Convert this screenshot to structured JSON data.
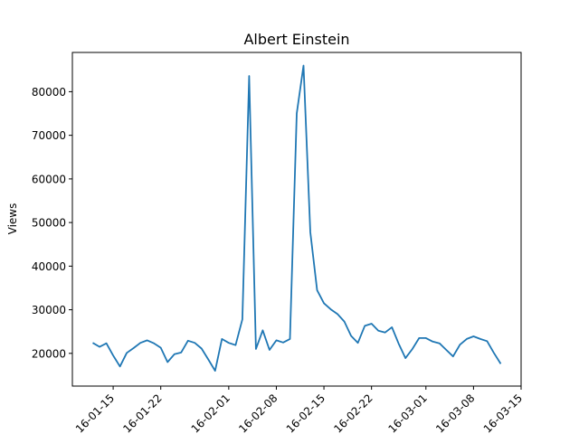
{
  "chart_data": {
    "type": "line",
    "title": "Albert Einstein",
    "xlabel": "",
    "ylabel": "Views",
    "grid": false,
    "line_color": "#1f77b4",
    "x_start": "2016-01-12",
    "x": [
      "2016-01-12",
      "2016-01-13",
      "2016-01-14",
      "2016-01-15",
      "2016-01-16",
      "2016-01-17",
      "2016-01-18",
      "2016-01-19",
      "2016-01-20",
      "2016-01-21",
      "2016-01-22",
      "2016-01-23",
      "2016-01-24",
      "2016-01-25",
      "2016-01-26",
      "2016-01-27",
      "2016-01-28",
      "2016-01-29",
      "2016-01-30",
      "2016-01-31",
      "2016-02-01",
      "2016-02-02",
      "2016-02-03",
      "2016-02-04",
      "2016-02-05",
      "2016-02-06",
      "2016-02-07",
      "2016-02-08",
      "2016-02-09",
      "2016-02-10",
      "2016-02-11",
      "2016-02-12",
      "2016-02-13",
      "2016-02-14",
      "2016-02-15",
      "2016-02-16",
      "2016-02-17",
      "2016-02-18",
      "2016-02-19",
      "2016-02-20",
      "2016-02-21",
      "2016-02-22",
      "2016-02-23",
      "2016-02-24",
      "2016-02-25",
      "2016-02-26",
      "2016-02-27",
      "2016-02-28",
      "2016-02-29",
      "2016-03-01",
      "2016-03-02",
      "2016-03-03",
      "2016-03-04",
      "2016-03-05",
      "2016-03-06",
      "2016-03-07",
      "2016-03-08",
      "2016-03-09",
      "2016-03-10",
      "2016-03-11",
      "2016-03-12"
    ],
    "values": [
      22400,
      21500,
      22300,
      19500,
      17000,
      20100,
      21200,
      22400,
      23000,
      22300,
      21300,
      18000,
      19800,
      20200,
      22900,
      22400,
      21100,
      18600,
      16000,
      23300,
      22400,
      21900,
      27800,
      83600,
      21000,
      25300,
      20800,
      23000,
      22500,
      23300,
      75000,
      86000,
      47800,
      34500,
      31500,
      30100,
      29000,
      27300,
      24000,
      22400,
      26300,
      26800,
      25200,
      24800,
      26000,
      22200,
      18900,
      21000,
      23500,
      23500,
      22700,
      22300,
      20800,
      19300,
      22000,
      23300,
      23900,
      23300,
      22800,
      20100,
      17600
    ],
    "x_ticks": [
      "2016-01-15",
      "2016-01-22",
      "2016-02-01",
      "2016-02-08",
      "2016-02-15",
      "2016-02-22",
      "2016-03-01",
      "2016-03-08",
      "2016-03-15"
    ],
    "x_tick_labels": [
      "16-01-15",
      "16-01-22",
      "16-02-01",
      "16-02-08",
      "16-02-15",
      "16-02-22",
      "16-03-01",
      "16-03-08",
      "16-03-15"
    ],
    "y_ticks": [
      20000,
      30000,
      40000,
      50000,
      60000,
      70000,
      80000
    ],
    "y_tick_labels": [
      "20000",
      "30000",
      "40000",
      "50000",
      "60000",
      "70000",
      "80000"
    ],
    "xlim": [
      "2016-01-09",
      "2016-03-15"
    ],
    "ylim": [
      12500,
      89000
    ]
  }
}
